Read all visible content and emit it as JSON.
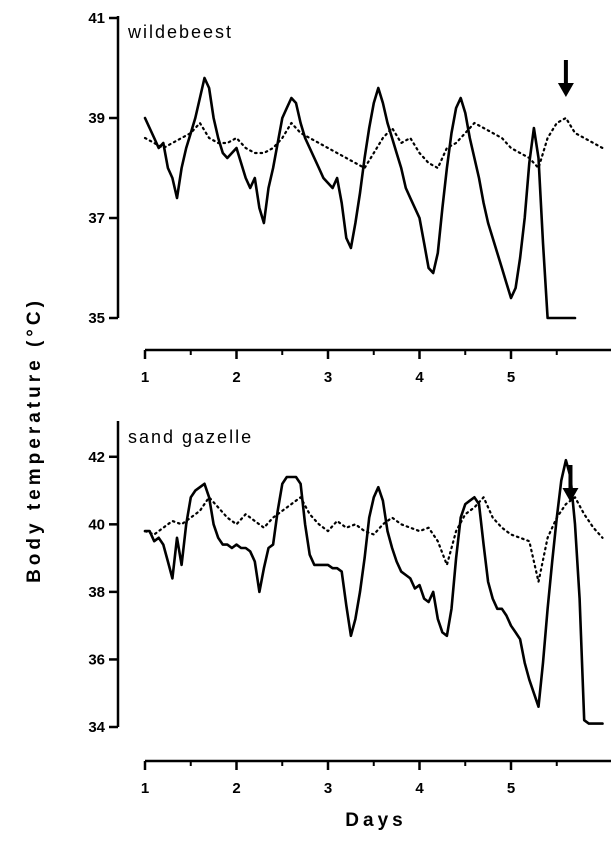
{
  "figure": {
    "ylabel": "Body temperature (°C)",
    "xlabel": "Days"
  },
  "chart_data": [
    {
      "type": "line",
      "title": "wildebeest",
      "xlim": [
        1,
        6
      ],
      "ylim": [
        35,
        41
      ],
      "yticks": [
        35,
        37,
        39,
        41
      ],
      "xticks": [
        1,
        2,
        3,
        4,
        5
      ],
      "annotation": "down-arrow",
      "annotation_x": 5.6,
      "series": [
        {
          "style": "solid",
          "x": [
            1.0,
            1.05,
            1.1,
            1.15,
            1.2,
            1.25,
            1.3,
            1.35,
            1.4,
            1.45,
            1.5,
            1.55,
            1.6,
            1.65,
            1.7,
            1.75,
            1.8,
            1.85,
            1.9,
            1.95,
            2.0,
            2.05,
            2.1,
            2.15,
            2.2,
            2.25,
            2.3,
            2.35,
            2.4,
            2.45,
            2.5,
            2.55,
            2.6,
            2.65,
            2.7,
            2.75,
            2.8,
            2.85,
            2.9,
            2.95,
            3.0,
            3.05,
            3.1,
            3.15,
            3.2,
            3.25,
            3.3,
            3.35,
            3.4,
            3.45,
            3.5,
            3.55,
            3.6,
            3.65,
            3.7,
            3.75,
            3.8,
            3.85,
            3.9,
            3.95,
            4.0,
            4.05,
            4.1,
            4.15,
            4.2,
            4.25,
            4.3,
            4.35,
            4.4,
            4.45,
            4.5,
            4.55,
            4.6,
            4.65,
            4.7,
            4.75,
            4.8,
            4.85,
            4.9,
            4.95,
            5.0,
            5.05,
            5.1,
            5.15,
            5.2,
            5.25,
            5.3,
            5.35,
            5.4,
            5.45,
            5.5,
            5.55,
            5.6,
            5.65,
            5.7
          ],
          "y": [
            39.0,
            38.8,
            38.6,
            38.4,
            38.5,
            38.0,
            37.8,
            37.4,
            38.0,
            38.4,
            38.7,
            39.0,
            39.4,
            39.8,
            39.6,
            39.0,
            38.6,
            38.3,
            38.2,
            38.3,
            38.4,
            38.1,
            37.8,
            37.6,
            37.8,
            37.2,
            36.9,
            37.6,
            38.0,
            38.5,
            39.0,
            39.2,
            39.4,
            39.3,
            38.9,
            38.6,
            38.4,
            38.2,
            38.0,
            37.8,
            37.7,
            37.6,
            37.8,
            37.3,
            36.6,
            36.4,
            36.9,
            37.5,
            38.2,
            38.8,
            39.3,
            39.6,
            39.3,
            38.9,
            38.6,
            38.3,
            38.0,
            37.6,
            37.4,
            37.2,
            37.0,
            36.5,
            36.0,
            35.9,
            36.3,
            37.2,
            38.0,
            38.7,
            39.2,
            39.4,
            39.1,
            38.6,
            38.2,
            37.8,
            37.3,
            36.9,
            36.6,
            36.3,
            36.0,
            35.7,
            35.4,
            35.6,
            36.2,
            37.0,
            38.1,
            38.8,
            38.2,
            36.5,
            35.0,
            35.0,
            35.0,
            35.0,
            35.0,
            35.0,
            35.0
          ]
        },
        {
          "style": "dotted",
          "x": [
            1.0,
            1.1,
            1.2,
            1.3,
            1.4,
            1.5,
            1.6,
            1.7,
            1.8,
            1.9,
            2.0,
            2.1,
            2.2,
            2.3,
            2.4,
            2.5,
            2.6,
            2.7,
            2.8,
            2.9,
            3.0,
            3.1,
            3.2,
            3.3,
            3.4,
            3.5,
            3.6,
            3.7,
            3.8,
            3.9,
            4.0,
            4.1,
            4.2,
            4.3,
            4.4,
            4.5,
            4.6,
            4.7,
            4.8,
            4.9,
            5.0,
            5.1,
            5.2,
            5.3,
            5.4,
            5.5,
            5.6,
            5.7,
            5.8,
            5.9,
            6.0
          ],
          "y": [
            38.6,
            38.5,
            38.4,
            38.5,
            38.6,
            38.7,
            38.9,
            38.6,
            38.5,
            38.5,
            38.6,
            38.4,
            38.3,
            38.3,
            38.4,
            38.6,
            38.9,
            38.7,
            38.6,
            38.5,
            38.4,
            38.3,
            38.2,
            38.1,
            38.0,
            38.3,
            38.6,
            38.8,
            38.5,
            38.6,
            38.3,
            38.1,
            38.0,
            38.4,
            38.5,
            38.7,
            38.9,
            38.8,
            38.7,
            38.6,
            38.4,
            38.3,
            38.2,
            38.0,
            38.6,
            38.9,
            39.0,
            38.7,
            38.6,
            38.5,
            38.4
          ]
        }
      ]
    },
    {
      "type": "line",
      "title": "sand gazelle",
      "xlim": [
        1,
        6
      ],
      "ylim": [
        34,
        43
      ],
      "yticks": [
        34,
        36,
        38,
        40,
        42
      ],
      "xticks": [
        1,
        2,
        3,
        4,
        5
      ],
      "annotation": "down-arrow",
      "annotation_x": 5.65,
      "series": [
        {
          "style": "solid",
          "x": [
            1.0,
            1.05,
            1.1,
            1.15,
            1.2,
            1.25,
            1.3,
            1.35,
            1.4,
            1.45,
            1.5,
            1.55,
            1.6,
            1.65,
            1.7,
            1.75,
            1.8,
            1.85,
            1.9,
            1.95,
            2.0,
            2.05,
            2.1,
            2.15,
            2.2,
            2.25,
            2.3,
            2.35,
            2.4,
            2.45,
            2.5,
            2.55,
            2.6,
            2.65,
            2.7,
            2.75,
            2.8,
            2.85,
            2.9,
            2.95,
            3.0,
            3.05,
            3.1,
            3.15,
            3.2,
            3.25,
            3.3,
            3.35,
            3.4,
            3.45,
            3.5,
            3.55,
            3.6,
            3.65,
            3.7,
            3.75,
            3.8,
            3.85,
            3.9,
            3.95,
            4.0,
            4.05,
            4.1,
            4.15,
            4.2,
            4.25,
            4.3,
            4.35,
            4.4,
            4.45,
            4.5,
            4.55,
            4.6,
            4.65,
            4.7,
            4.75,
            4.8,
            4.85,
            4.9,
            4.95,
            5.0,
            5.05,
            5.1,
            5.15,
            5.2,
            5.25,
            5.3,
            5.35,
            5.4,
            5.45,
            5.5,
            5.55,
            5.6,
            5.65,
            5.7,
            5.75,
            5.8,
            5.85,
            5.9,
            5.95,
            6.0
          ],
          "y": [
            39.8,
            39.8,
            39.5,
            39.6,
            39.4,
            38.9,
            38.4,
            39.6,
            38.8,
            40.0,
            40.8,
            41.0,
            41.1,
            41.2,
            40.8,
            40.0,
            39.6,
            39.4,
            39.4,
            39.3,
            39.4,
            39.3,
            39.3,
            39.2,
            38.9,
            38.0,
            38.7,
            39.3,
            39.4,
            40.4,
            41.2,
            41.4,
            41.4,
            41.4,
            41.2,
            40.0,
            39.1,
            38.8,
            38.8,
            38.8,
            38.8,
            38.7,
            38.7,
            38.6,
            37.6,
            36.7,
            37.2,
            38.0,
            39.0,
            40.2,
            40.8,
            41.1,
            40.7,
            39.8,
            39.3,
            38.9,
            38.6,
            38.5,
            38.4,
            38.1,
            38.2,
            37.8,
            37.7,
            38.0,
            37.2,
            36.8,
            36.7,
            37.5,
            39.0,
            40.2,
            40.6,
            40.7,
            40.8,
            40.6,
            39.4,
            38.3,
            37.8,
            37.5,
            37.5,
            37.3,
            37.0,
            36.8,
            36.6,
            35.9,
            35.4,
            35.0,
            34.6,
            35.9,
            37.5,
            38.9,
            40.2,
            41.3,
            41.9,
            41.4,
            40.0,
            37.8,
            34.2,
            34.1,
            34.1,
            34.1,
            34.1
          ]
        },
        {
          "style": "dotted",
          "x": [
            1.0,
            1.1,
            1.2,
            1.3,
            1.4,
            1.5,
            1.6,
            1.7,
            1.8,
            1.9,
            2.0,
            2.1,
            2.2,
            2.3,
            2.4,
            2.5,
            2.6,
            2.7,
            2.8,
            2.9,
            3.0,
            3.1,
            3.2,
            3.3,
            3.4,
            3.5,
            3.6,
            3.7,
            3.8,
            3.9,
            4.0,
            4.1,
            4.2,
            4.3,
            4.4,
            4.5,
            4.6,
            4.7,
            4.8,
            4.9,
            5.0,
            5.1,
            5.2,
            5.3,
            5.4,
            5.5,
            5.6,
            5.7,
            5.8,
            5.9,
            6.0
          ],
          "y": [
            39.8,
            39.7,
            39.9,
            40.1,
            40.0,
            40.2,
            40.4,
            40.8,
            40.5,
            40.2,
            40.0,
            40.3,
            40.1,
            39.9,
            40.2,
            40.4,
            40.6,
            40.8,
            40.3,
            40.0,
            39.8,
            40.1,
            39.9,
            40.0,
            39.8,
            39.7,
            40.0,
            40.2,
            40.0,
            39.9,
            39.8,
            39.9,
            39.5,
            38.8,
            39.8,
            40.3,
            40.5,
            40.8,
            40.2,
            39.9,
            39.7,
            39.6,
            39.5,
            38.3,
            39.6,
            40.2,
            40.6,
            40.8,
            40.3,
            39.9,
            39.6
          ]
        }
      ]
    }
  ]
}
